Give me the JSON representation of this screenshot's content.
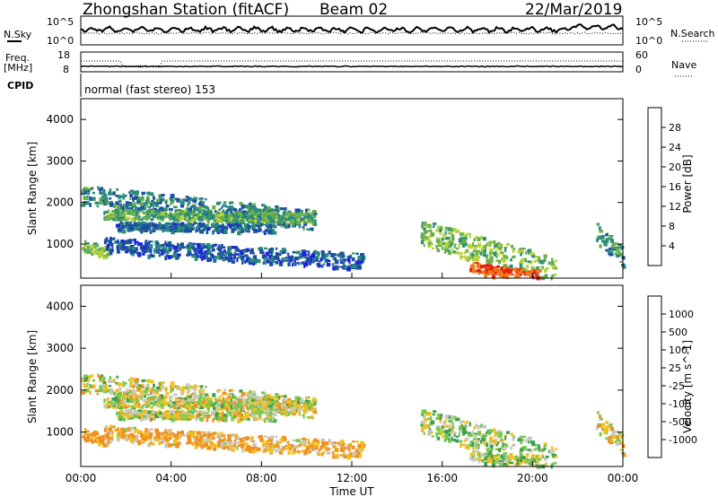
{
  "header": {
    "station": "Zhongshan Station (fitACF)",
    "beam": "Beam 02",
    "date": "22/Mar/2019"
  },
  "top_panels": {
    "nsky_label": "N.Sky",
    "nsky_ticks": [
      "10^5",
      "10^0"
    ],
    "nsearch_label": "N.Search",
    "nsearch_ticks": [
      "10^5",
      "10^0"
    ],
    "freq_label_1": "Freq.",
    "freq_label_2": "[MHz]",
    "freq_ticks": [
      "18",
      "8"
    ],
    "nave_label": "Nave",
    "nave_ticks": [
      "60",
      "0"
    ],
    "cpid_label": "CPID",
    "cpid_text": "normal (fast stereo) 153"
  },
  "axes": {
    "ylabel": "Slant Range [km]",
    "yticks": [
      "4000",
      "3000",
      "2000",
      "1000"
    ],
    "xlabel": "Time UT",
    "xticks": [
      "00:00",
      "04:00",
      "08:00",
      "12:00",
      "16:00",
      "20:00",
      "00:00"
    ]
  },
  "power_scale": {
    "label": "Power [dB]",
    "ticks": [
      "28",
      "24",
      "20",
      "16",
      "12",
      "8",
      "4"
    ],
    "colors": [
      "#1e1ee6",
      "#1d4fa0",
      "#2b8c7a",
      "#6ab04c",
      "#b8d43a",
      "#f0c020",
      "#f07818",
      "#e82010"
    ]
  },
  "velocity_scale": {
    "label": "Velocity [m s^-1]",
    "ticks": [
      "1000",
      "500",
      "100",
      "25",
      "-25",
      "-100",
      "-500",
      "-1000"
    ],
    "colors": [
      "#2040c0",
      "#2a7e8a",
      "#3aa050",
      "#78c850",
      "#c8c8c0",
      "#f0c020",
      "#f09020",
      "#f06010",
      "#e82010"
    ]
  },
  "chart_data": {
    "type": "heatmap",
    "xlim_hours": [
      0,
      24
    ],
    "ylim_km": [
      180,
      4500
    ],
    "power_range_db": [
      0,
      30
    ],
    "velocity_range_ms": [
      -1000,
      1000
    ],
    "scatter_regions": [
      {
        "name": "upper arc",
        "t_start": 0.0,
        "t_end": 10.3,
        "r_start": 2200,
        "r_end": 1600,
        "power_db": 9,
        "velocity": 0
      },
      {
        "name": "middle band",
        "t_start": 1.0,
        "t_end": 10.3,
        "r_start": 1750,
        "r_end": 1650,
        "power_db": 12,
        "velocity": 0
      },
      {
        "name": "lower band",
        "t_start": 1.5,
        "t_end": 8.5,
        "r_start": 1450,
        "r_end": 1400,
        "power_db": 7,
        "velocity": 0
      },
      {
        "name": "near range early",
        "t_start": 0.0,
        "t_end": 1.2,
        "r_start": 1000,
        "r_end": 800,
        "power_db": 14,
        "velocity": -150
      },
      {
        "name": "near range scattered",
        "t_start": 1.0,
        "t_end": 12.5,
        "r_start": 1000,
        "r_end": 600,
        "power_db": 6,
        "velocity": -100
      },
      {
        "name": "afternoon echo",
        "t_start": 15.0,
        "t_end": 21.0,
        "r_start": 1300,
        "r_end": 400,
        "power_db": 14,
        "velocity": 50
      },
      {
        "name": "strong near echo",
        "t_start": 17.2,
        "t_end": 20.3,
        "r_start": 450,
        "r_end": 250,
        "power_db": 27,
        "velocity": 30
      },
      {
        "name": "late evening",
        "t_start": 22.8,
        "t_end": 24.0,
        "r_start": 1300,
        "r_end": 700,
        "power_db": 10,
        "velocity": -50
      }
    ]
  }
}
